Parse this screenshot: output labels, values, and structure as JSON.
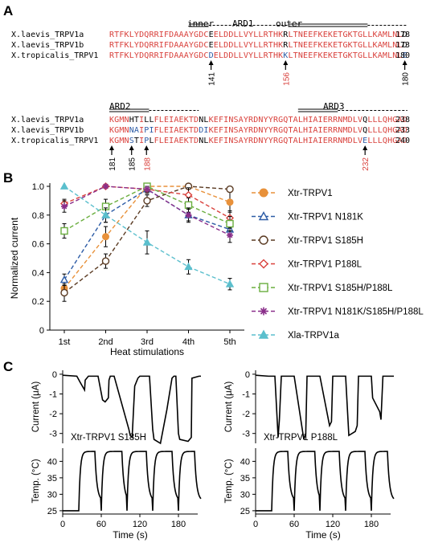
{
  "panel_labels": {
    "a": "A",
    "b": "B",
    "c": "C"
  },
  "alignment": {
    "block1": {
      "header": {
        "inner": "inner",
        "ard": "ARD1",
        "outer": "outer"
      },
      "rows": [
        {
          "name": "X.laevis_TRPV1a",
          "seq": "RTFKLYDQRRIFDAAAYGDCEELDDLLVYLLRTHKRLTNEEFKEKETGKTGLLKAMLNLD",
          "end": "178"
        },
        {
          "name": "X.laevis_TRPV1b",
          "seq": "RTFKLYDQRRIFDAAAYGDCEELDDLLVYLLRTHKRLTNEEFKEKETGKTGLLKAMLNLD",
          "end": "173"
        },
        {
          "name": "X.tropicalis_TRPV1",
          "seq": "RTFKLYDQRRIFDAAAYGDCDELDDLLVYLLRTHKKLTNEEFKEKETGKTGLLKAMLNLE",
          "end": "180"
        }
      ],
      "arrows": [
        {
          "label": "141",
          "col": 20,
          "color": "#000000"
        },
        {
          "label": "156",
          "col": 35,
          "color": "#d9413c"
        },
        {
          "label": "180",
          "col": 59,
          "color": "#000000"
        }
      ]
    },
    "block2": {
      "header": {
        "ard2": "ARD2",
        "ard3": "ARD3"
      },
      "rows": [
        {
          "name": "X.laevis_TRPV1a",
          "seq": "KGMNHTILLFLEIAEKTDNLKEFINSAYRDNYYRGQTALHIAIERRNMDLVQLLLQHGAD",
          "end": "238"
        },
        {
          "name": "X.laevis_TRPV1b",
          "seq": "KGMNNAIPIFLEIAEKTDDIKEFINSAYRDNYYRGQTALHIAIERRNMDLVQLLLQHGAD",
          "end": "233"
        },
        {
          "name": "X.tropicalis_TRPV1",
          "seq": "KGMNSTIPLFLEIAEKTDNLKEFINSAYRDNYYRGQTALHIAIERRNMDLVELLLQHGAD",
          "end": "240"
        }
      ],
      "arrows": [
        {
          "label": "181",
          "col": 0,
          "color": "#000000"
        },
        {
          "label": "185",
          "col": 4,
          "color": "#000000"
        },
        {
          "label": "188",
          "col": 7,
          "color": "#d9413c"
        },
        {
          "label": "232",
          "col": 51,
          "color": "#d9413c"
        }
      ]
    }
  },
  "chart_data": [
    {
      "type": "line",
      "panel": "B",
      "xlabel": "Heat stimulations",
      "ylabel": "Normalized current",
      "categories": [
        "1st",
        "2nd",
        "3rd",
        "4th",
        "5th"
      ],
      "ylim": [
        0,
        1.0
      ],
      "yticks": [
        "0",
        "0.2",
        "0.4",
        "0.6",
        "0.8",
        "1.0"
      ],
      "series": [
        {
          "name": "Xtr-TRPV1",
          "color": "#e8913a",
          "marker": "circle-filled",
          "values": [
            0.29,
            0.65,
            1.0,
            1.0,
            0.89
          ],
          "err": [
            0.05,
            0.07,
            0.0,
            0.0,
            0.07
          ]
        },
        {
          "name": "Xtr-TRPV1 N181K",
          "color": "#2d5ca6",
          "marker": "triangle-open",
          "values": [
            0.35,
            0.8,
            0.98,
            0.8,
            0.7
          ],
          "err": [
            0.04,
            0.05,
            0.03,
            0.04,
            0.05
          ]
        },
        {
          "name": "Xtr-TRPV1 S185H",
          "color": "#5a3a22",
          "marker": "circle-open",
          "values": [
            0.26,
            0.48,
            0.9,
            1.0,
            0.98
          ],
          "err": [
            0.06,
            0.05,
            0.04,
            0.0,
            0.02
          ]
        },
        {
          "name": "Xtr-TRPV1 P188L",
          "color": "#d9413c",
          "marker": "diamond-open",
          "values": [
            0.88,
            1.0,
            0.98,
            0.94,
            0.78
          ],
          "err": [
            0.03,
            0.0,
            0.02,
            0.05,
            0.05
          ]
        },
        {
          "name": "Xtr-TRPV1 S185H/P188L",
          "color": "#6aae3e",
          "marker": "square-open",
          "values": [
            0.69,
            0.86,
            1.0,
            0.87,
            0.74
          ],
          "err": [
            0.05,
            0.05,
            0.0,
            0.05,
            0.05
          ]
        },
        {
          "name": "Xtr-TRPV1 N181K/S185H/P188L",
          "color": "#8a2f8a",
          "marker": "star",
          "values": [
            0.86,
            1.0,
            0.98,
            0.8,
            0.66
          ],
          "err": [
            0.04,
            0.0,
            0.02,
            0.05,
            0.05
          ]
        },
        {
          "name": "Xla-TRPV1a",
          "color": "#5bbfcd",
          "marker": "triangle-filled",
          "values": [
            1.0,
            0.8,
            0.61,
            0.44,
            0.32
          ],
          "err": [
            0.0,
            0.05,
            0.08,
            0.05,
            0.04
          ]
        }
      ]
    },
    {
      "type": "line",
      "panel": "C-left-current",
      "label": "Xtr-TRPV1 S185H",
      "ylabel": "Current (μA)",
      "xlim": [
        0,
        210
      ],
      "ylim": [
        -3.5,
        0.2
      ],
      "yticks": [
        "0",
        "-1",
        "-2",
        "-3"
      ],
      "x": [
        0,
        22,
        27,
        34,
        35,
        40,
        55,
        62,
        66,
        71,
        72,
        74,
        80,
        97,
        103,
        105,
        108,
        112,
        117,
        120,
        135,
        140,
        142,
        152,
        162,
        170,
        173,
        176,
        180,
        182,
        195,
        200,
        201,
        212,
        215
      ],
      "y": [
        -0.05,
        -0.1,
        -0.4,
        -0.8,
        -0.3,
        -0.1,
        -0.1,
        -1.3,
        -1.4,
        -1.2,
        -0.3,
        -0.1,
        -0.1,
        -2.1,
        -2.8,
        -3.1,
        -3.2,
        -0.6,
        -0.2,
        -0.1,
        -0.1,
        -2.8,
        -3.3,
        -3.5,
        -1.8,
        -0.2,
        -0.1,
        -0.1,
        -3.0,
        -3.3,
        -3.4,
        -3.2,
        -0.2,
        -0.1,
        -0.1
      ]
    },
    {
      "type": "line",
      "panel": "C-left-temperature",
      "ylabel": "Temp. (°C)",
      "xlabel": "Time (s)",
      "xlim": [
        0,
        210
      ],
      "ylim": [
        24,
        44
      ],
      "xticks": [
        "0",
        "60",
        "120",
        "180"
      ],
      "yticks": [
        "25",
        "30",
        "35",
        "40"
      ]
    },
    {
      "type": "line",
      "panel": "C-right-current",
      "label": "Xtr-TRPV1 P188L",
      "ylabel": "Current (μA)",
      "xlim": [
        0,
        210
      ],
      "ylim": [
        -3.5,
        0.2
      ],
      "yticks": [
        "0",
        "-1",
        "-2",
        "-3"
      ],
      "x": [
        0,
        20,
        30,
        35,
        37,
        40,
        55,
        60,
        75,
        78,
        80,
        95,
        100,
        115,
        118,
        120,
        135,
        140,
        145,
        155,
        158,
        160,
        175,
        180,
        182,
        193,
        195,
        198,
        200,
        212,
        215
      ],
      "y": [
        -0.05,
        -0.1,
        -0.1,
        -3.2,
        -2.3,
        -0.1,
        -0.1,
        -0.1,
        -3.3,
        -3.0,
        -0.1,
        -0.1,
        -0.1,
        -2.6,
        -2.4,
        -0.1,
        -0.1,
        -0.1,
        -3.1,
        -2.9,
        -2.6,
        -0.1,
        -0.1,
        -0.1,
        -1.2,
        -1.9,
        -2.3,
        -0.1,
        -0.1,
        -0.1,
        -0.1
      ]
    },
    {
      "type": "line",
      "panel": "C-right-temperature",
      "ylabel": "Temp. (°C)",
      "xlabel": "Time (s)",
      "xlim": [
        0,
        210
      ],
      "ylim": [
        24,
        44
      ],
      "xticks": [
        "0",
        "60",
        "120",
        "180"
      ],
      "yticks": [
        "25",
        "30",
        "35",
        "40"
      ]
    }
  ],
  "temperature_trace": {
    "baseline_c": 25,
    "peak_c": 43,
    "pulses": [
      {
        "start_s": 25,
        "end_s": 50
      },
      {
        "start_s": 60,
        "end_s": 92
      },
      {
        "start_s": 100,
        "end_s": 130
      },
      {
        "start_s": 140,
        "end_s": 170
      },
      {
        "start_s": 180,
        "end_s": 205
      }
    ]
  },
  "colors": {
    "red": "#d9413c",
    "blue": "#2d5ca6"
  }
}
